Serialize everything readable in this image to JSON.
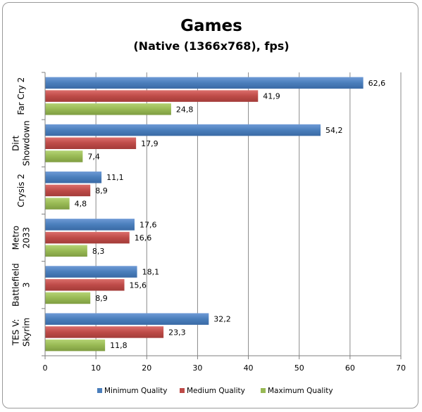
{
  "chart_data": {
    "type": "bar",
    "orientation": "horizontal",
    "title": "Games",
    "subtitle": "(Native (1366x768), fps)",
    "categories": [
      [
        "Far Cry 2"
      ],
      [
        "Dirt",
        "Showdown"
      ],
      [
        "Crysis 2"
      ],
      [
        "Metro",
        "2033"
      ],
      [
        "Battlefield",
        "3"
      ],
      [
        "TES V:",
        "Skyrim"
      ]
    ],
    "series": [
      {
        "name": "Minimum Quality",
        "color": "#4a7ebb",
        "values": [
          62.6,
          54.2,
          11.1,
          17.6,
          18.1,
          32.2
        ],
        "labels": [
          "62,6",
          "54,2",
          "11,1",
          "17,6",
          "18,1",
          "32,2"
        ]
      },
      {
        "name": "Medium Quality",
        "color": "#be4b48",
        "values": [
          41.9,
          17.9,
          8.9,
          16.6,
          15.6,
          23.3
        ],
        "labels": [
          "41,9",
          "17,9",
          "8,9",
          "16,6",
          "15,6",
          "23,3"
        ]
      },
      {
        "name": "Maximum Quality",
        "color": "#98b954",
        "values": [
          24.8,
          7.4,
          4.8,
          8.3,
          8.9,
          11.8
        ],
        "labels": [
          "24,8",
          "7,4",
          "4,8",
          "8,3",
          "8,9",
          "11,8"
        ]
      }
    ],
    "xlim": [
      0,
      70
    ],
    "xticks": [
      0,
      10,
      20,
      30,
      40,
      50,
      60,
      70
    ],
    "grid": "vertical",
    "legend": "bottom"
  }
}
